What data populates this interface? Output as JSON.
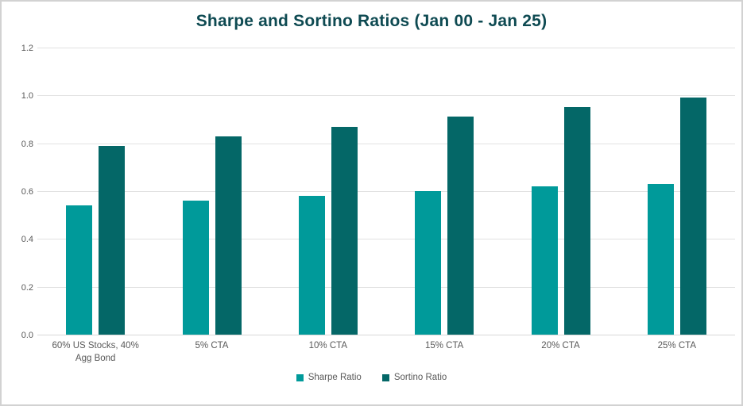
{
  "window": {
    "background": "#ffffff",
    "border_color": "#d2d2d2"
  },
  "chart_data": {
    "type": "bar",
    "title": "Sharpe and Sortino Ratios (Jan 00 - Jan 25)",
    "title_color": "#0e4a52",
    "categories": [
      "60% US Stocks, 40% Agg Bond",
      "5% CTA",
      "10% CTA",
      "15% CTA",
      "20% CTA",
      "25% CTA"
    ],
    "series": [
      {
        "name": "Sharpe Ratio",
        "color": "#009a9a",
        "values": [
          0.54,
          0.56,
          0.58,
          0.6,
          0.62,
          0.63
        ]
      },
      {
        "name": "Sortino Ratio",
        "color": "#046767",
        "values": [
          0.79,
          0.83,
          0.87,
          0.91,
          0.95,
          0.99
        ]
      }
    ],
    "y_axis": {
      "min": 0.0,
      "max": 1.2,
      "step": 0.2,
      "tick_labels": [
        "0.0",
        "0.2",
        "0.4",
        "0.6",
        "0.8",
        "1.0",
        "1.2"
      ]
    },
    "grid": true,
    "gridline_color": "#e2e2e2",
    "axis_line_color": "#d8d8d8",
    "axis_label_color": "#595959",
    "legend_position": "bottom"
  }
}
